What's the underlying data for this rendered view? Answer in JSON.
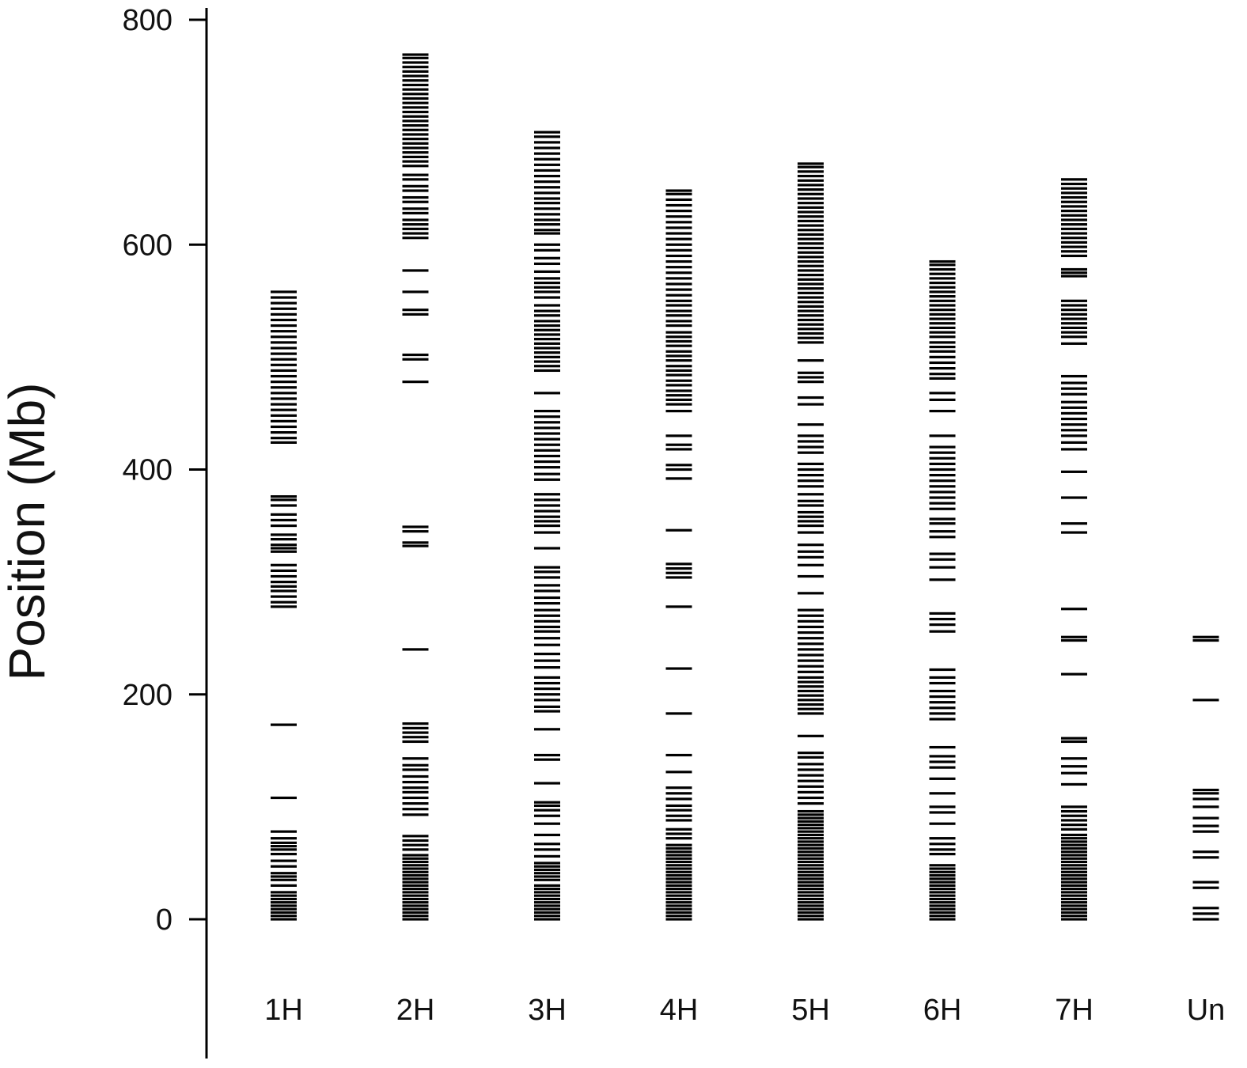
{
  "chart_data": {
    "type": "scatter",
    "title": "",
    "xlabel": "",
    "ylabel": "Position (Mb)",
    "ylim": [
      -120,
      810
    ],
    "yticks": [
      0,
      200,
      400,
      600,
      800
    ],
    "categories": [
      "1H",
      "2H",
      "3H",
      "4H",
      "5H",
      "6H",
      "7H",
      "Un"
    ],
    "grid": false,
    "legend": "none",
    "marker": "horizontal-dash",
    "mark_color": "#000000",
    "series": [
      {
        "category": "1H",
        "positions": [
          0,
          3,
          6,
          9,
          12,
          15,
          18,
          21,
          24,
          30,
          35,
          38,
          41,
          47,
          52,
          58,
          62,
          65,
          68,
          72,
          78,
          108,
          173,
          278,
          282,
          287,
          292,
          296,
          300,
          305,
          310,
          315,
          327,
          330,
          333,
          338,
          342,
          350,
          355,
          360,
          368,
          373,
          376,
          424,
          428,
          433,
          438,
          443,
          448,
          453,
          458,
          463,
          468,
          473,
          478,
          483,
          488,
          493,
          498,
          503,
          508,
          513,
          518,
          523,
          528,
          533,
          538,
          543,
          548,
          553,
          558
        ]
      },
      {
        "category": "2H",
        "positions": [
          0,
          3,
          6,
          9,
          12,
          15,
          18,
          21,
          24,
          27,
          30,
          33,
          36,
          39,
          42,
          45,
          48,
          51,
          54,
          57,
          62,
          66,
          70,
          74,
          93,
          98,
          103,
          108,
          113,
          117,
          122,
          127,
          133,
          137,
          143,
          158,
          162,
          166,
          170,
          174,
          240,
          332,
          335,
          345,
          349,
          478,
          498,
          502,
          538,
          542,
          558,
          577,
          606,
          610,
          614,
          618,
          622,
          628,
          632,
          638,
          642,
          648,
          652,
          658,
          662,
          670,
          674,
          678,
          682,
          686,
          690,
          694,
          698,
          702,
          706,
          710,
          714,
          718,
          722,
          726,
          730,
          734,
          738,
          742,
          746,
          750,
          754,
          758,
          762,
          766,
          769
        ]
      },
      {
        "category": "3H",
        "positions": [
          0,
          3,
          6,
          9,
          12,
          15,
          18,
          21,
          24,
          27,
          30,
          35,
          38,
          41,
          44,
          47,
          50,
          56,
          62,
          67,
          75,
          85,
          92,
          97,
          101,
          104,
          121,
          142,
          146,
          169,
          185,
          189,
          195,
          200,
          205,
          210,
          215,
          224,
          230,
          236,
          244,
          250,
          256,
          260,
          265,
          270,
          275,
          281,
          286,
          292,
          297,
          304,
          309,
          313,
          330,
          344,
          350,
          354,
          358,
          363,
          368,
          373,
          378,
          391,
          396,
          402,
          407,
          412,
          417,
          422,
          427,
          432,
          437,
          442,
          447,
          452,
          468,
          488,
          492,
          496,
          500,
          504,
          508,
          512,
          516,
          520,
          524,
          528,
          532,
          537,
          541,
          546,
          553,
          558,
          562,
          566,
          570,
          576,
          583,
          588,
          595,
          600,
          610,
          613,
          618,
          622,
          627,
          632,
          637,
          641,
          646,
          651,
          656,
          661,
          666,
          671,
          676,
          681,
          686,
          691,
          696,
          700
        ]
      },
      {
        "category": "4H",
        "positions": [
          0,
          3,
          6,
          9,
          12,
          15,
          18,
          21,
          24,
          27,
          30,
          33,
          36,
          39,
          42,
          45,
          48,
          51,
          54,
          57,
          60,
          63,
          66,
          72,
          76,
          80,
          88,
          92,
          97,
          101,
          107,
          112,
          117,
          131,
          146,
          183,
          223,
          278,
          304,
          308,
          312,
          316,
          346,
          392,
          400,
          404,
          418,
          422,
          430,
          452,
          458,
          462,
          466,
          470,
          475,
          479,
          484,
          488,
          492,
          497,
          501,
          505,
          510,
          514,
          518,
          522,
          528,
          532,
          537,
          541,
          546,
          550,
          555,
          560,
          565,
          570,
          575,
          580,
          585,
          590,
          595,
          600,
          605,
          610,
          615,
          620,
          625,
          630,
          635,
          640,
          645,
          648
        ]
      },
      {
        "category": "5H",
        "positions": [
          0,
          3,
          6,
          9,
          12,
          15,
          18,
          21,
          24,
          27,
          30,
          33,
          36,
          39,
          42,
          45,
          48,
          51,
          54,
          57,
          60,
          63,
          66,
          69,
          72,
          75,
          78,
          81,
          84,
          87,
          90,
          93,
          96,
          103,
          108,
          113,
          118,
          123,
          128,
          133,
          138,
          144,
          148,
          163,
          183,
          187,
          191,
          195,
          199,
          203,
          207,
          211,
          215,
          220,
          225,
          230,
          235,
          240,
          245,
          250,
          255,
          260,
          265,
          270,
          275,
          290,
          305,
          315,
          322,
          327,
          333,
          344,
          350,
          354,
          358,
          362,
          368,
          372,
          378,
          385,
          390,
          395,
          400,
          405,
          415,
          420,
          425,
          430,
          440,
          458,
          464,
          478,
          482,
          486,
          497,
          513,
          517,
          521,
          525,
          529,
          533,
          537,
          541,
          545,
          549,
          553,
          557,
          561,
          565,
          569,
          573,
          577,
          581,
          585,
          589,
          593,
          597,
          601,
          605,
          609,
          613,
          617,
          621,
          625,
          629,
          633,
          637,
          641,
          645,
          649,
          653,
          657,
          661,
          665,
          669,
          672
        ]
      },
      {
        "category": "6H",
        "positions": [
          0,
          3,
          6,
          9,
          12,
          15,
          18,
          21,
          24,
          27,
          30,
          33,
          36,
          39,
          42,
          45,
          48,
          58,
          62,
          67,
          72,
          85,
          95,
          100,
          112,
          125,
          135,
          140,
          145,
          153,
          178,
          183,
          188,
          193,
          198,
          203,
          210,
          215,
          222,
          256,
          262,
          267,
          272,
          302,
          313,
          320,
          325,
          340,
          345,
          352,
          356,
          365,
          370,
          375,
          380,
          385,
          390,
          395,
          400,
          405,
          410,
          415,
          420,
          430,
          452,
          462,
          468,
          481,
          485,
          490,
          495,
          500,
          505,
          509,
          513,
          518,
          522,
          526,
          530,
          534,
          538,
          542,
          546,
          550,
          554,
          558,
          562,
          566,
          570,
          574,
          578,
          582,
          585
        ]
      },
      {
        "category": "7H",
        "positions": [
          0,
          3,
          6,
          9,
          12,
          15,
          18,
          21,
          24,
          27,
          30,
          33,
          36,
          39,
          42,
          45,
          48,
          51,
          54,
          57,
          60,
          63,
          66,
          69,
          72,
          75,
          80,
          84,
          88,
          92,
          96,
          100,
          120,
          130,
          136,
          143,
          158,
          161,
          218,
          248,
          251,
          276,
          344,
          352,
          375,
          398,
          418,
          424,
          430,
          435,
          440,
          445,
          450,
          455,
          460,
          467,
          472,
          477,
          483,
          512,
          518,
          522,
          526,
          530,
          534,
          538,
          542,
          546,
          550,
          572,
          575,
          578,
          590,
          594,
          598,
          602,
          606,
          610,
          614,
          618,
          622,
          626,
          630,
          634,
          638,
          642,
          646,
          650,
          654,
          658
        ]
      },
      {
        "category": "Un",
        "positions": [
          0,
          5,
          10,
          28,
          33,
          55,
          60,
          78,
          83,
          90,
          100,
          107,
          112,
          115,
          195,
          248,
          251
        ]
      }
    ]
  }
}
